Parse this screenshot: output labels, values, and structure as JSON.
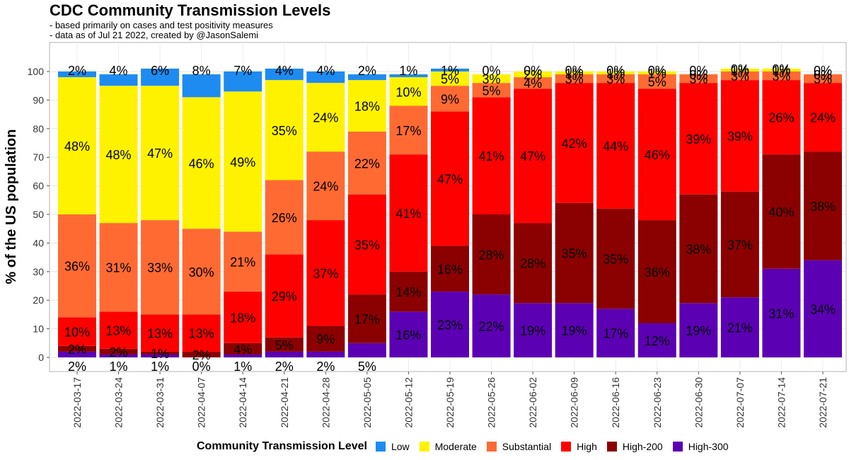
{
  "chart_data": {
    "type": "bar",
    "stacked": true,
    "title": "CDC Community Transmission Levels",
    "subtitle_lines": [
      "- based primarily on cases and test positivity measures",
      "- data as of Jul 21 2022, created by @JasonSalemi"
    ],
    "ylabel": "% of the US population",
    "xlabel": "",
    "ylim": [
      0,
      100
    ],
    "yticks": [
      0,
      10,
      20,
      30,
      40,
      50,
      60,
      70,
      80,
      90,
      100
    ],
    "grid": true,
    "legend_title": "Community Transmission Level",
    "legend_position": "bottom",
    "categories": [
      "2022-03-17",
      "2022-03-24",
      "2022-03-31",
      "2022-04-07",
      "2022-04-14",
      "2022-04-21",
      "2022-04-28",
      "2022-05-05",
      "2022-05-12",
      "2022-05-19",
      "2022-05-26",
      "2022-06-02",
      "2022-06-09",
      "2022-06-16",
      "2022-06-23",
      "2022-06-30",
      "2022-07-07",
      "2022-07-14",
      "2022-07-21"
    ],
    "series": [
      {
        "name": "High-300",
        "color": "#5B00B3",
        "values": [
          2,
          1,
          1,
          0,
          1,
          2,
          2,
          5,
          16,
          23,
          22,
          19,
          19,
          17,
          12,
          19,
          21,
          31,
          34
        ],
        "labels": [
          "2%",
          "1%",
          "1%",
          "0%",
          "1%",
          "2%",
          "2%",
          "5%",
          "16%",
          "23%",
          "22%",
          "19%",
          "19%",
          "17%",
          "12%",
          "19%",
          "21%",
          "31%",
          "34%"
        ]
      },
      {
        "name": "High-200",
        "color": "#8B0000",
        "values": [
          2,
          2,
          1,
          2,
          4,
          5,
          9,
          17,
          14,
          16,
          28,
          28,
          35,
          35,
          36,
          38,
          37,
          40,
          38
        ],
        "labels": [
          "2%",
          "2%",
          "1%",
          "2%",
          "4%",
          "5%",
          "9%",
          "17%",
          "14%",
          "16%",
          "28%",
          "28%",
          "35%",
          "35%",
          "36%",
          "38%",
          "37%",
          "40%",
          "38%"
        ]
      },
      {
        "name": "High",
        "color": "#FF0000",
        "values": [
          10,
          13,
          13,
          13,
          18,
          29,
          37,
          35,
          41,
          47,
          41,
          47,
          42,
          44,
          46,
          39,
          39,
          26,
          24
        ],
        "labels": [
          "10%",
          "13%",
          "13%",
          "13%",
          "18%",
          "29%",
          "37%",
          "35%",
          "41%",
          "47%",
          "41%",
          "47%",
          "42%",
          "44%",
          "46%",
          "39%",
          "39%",
          "26%",
          "24%"
        ]
      },
      {
        "name": "Substantial",
        "color": "#FF6A33",
        "values": [
          36,
          31,
          33,
          30,
          21,
          26,
          24,
          22,
          17,
          9,
          5,
          4,
          3,
          3,
          5,
          3,
          3,
          3,
          3
        ],
        "labels": [
          "36%",
          "31%",
          "33%",
          "30%",
          "21%",
          "26%",
          "24%",
          "22%",
          "17%",
          "9%",
          "5%",
          "4%",
          "3%",
          "3%",
          "5%",
          "3%",
          "3%",
          "3%",
          "3%"
        ]
      },
      {
        "name": "Moderate",
        "color": "#FFF200",
        "values": [
          48,
          48,
          47,
          46,
          49,
          35,
          24,
          18,
          10,
          5,
          3,
          2,
          1,
          1,
          1,
          0,
          1,
          1,
          0
        ],
        "labels": [
          "48%",
          "48%",
          "47%",
          "46%",
          "49%",
          "35%",
          "24%",
          "18%",
          "10%",
          "5%",
          "3%",
          "2%",
          "1%",
          "1%",
          "1%",
          "0%",
          "1%",
          "1%",
          "0%"
        ]
      },
      {
        "name": "Low",
        "color": "#1E8BF0",
        "values": [
          2,
          4,
          6,
          8,
          7,
          4,
          4,
          2,
          1,
          1,
          0,
          0,
          0,
          0,
          0,
          0,
          0,
          0,
          0
        ],
        "labels": [
          "2%",
          "4%",
          "6%",
          "8%",
          "7%",
          "4%",
          "4%",
          "2%",
          "1%",
          "1%",
          "0%",
          "0%",
          "0%",
          "0%",
          "0%",
          "0%",
          "0%",
          "0%",
          "0%"
        ]
      }
    ],
    "legend_order": [
      "Low",
      "Moderate",
      "Substantial",
      "High",
      "High-200",
      "High-300"
    ]
  }
}
